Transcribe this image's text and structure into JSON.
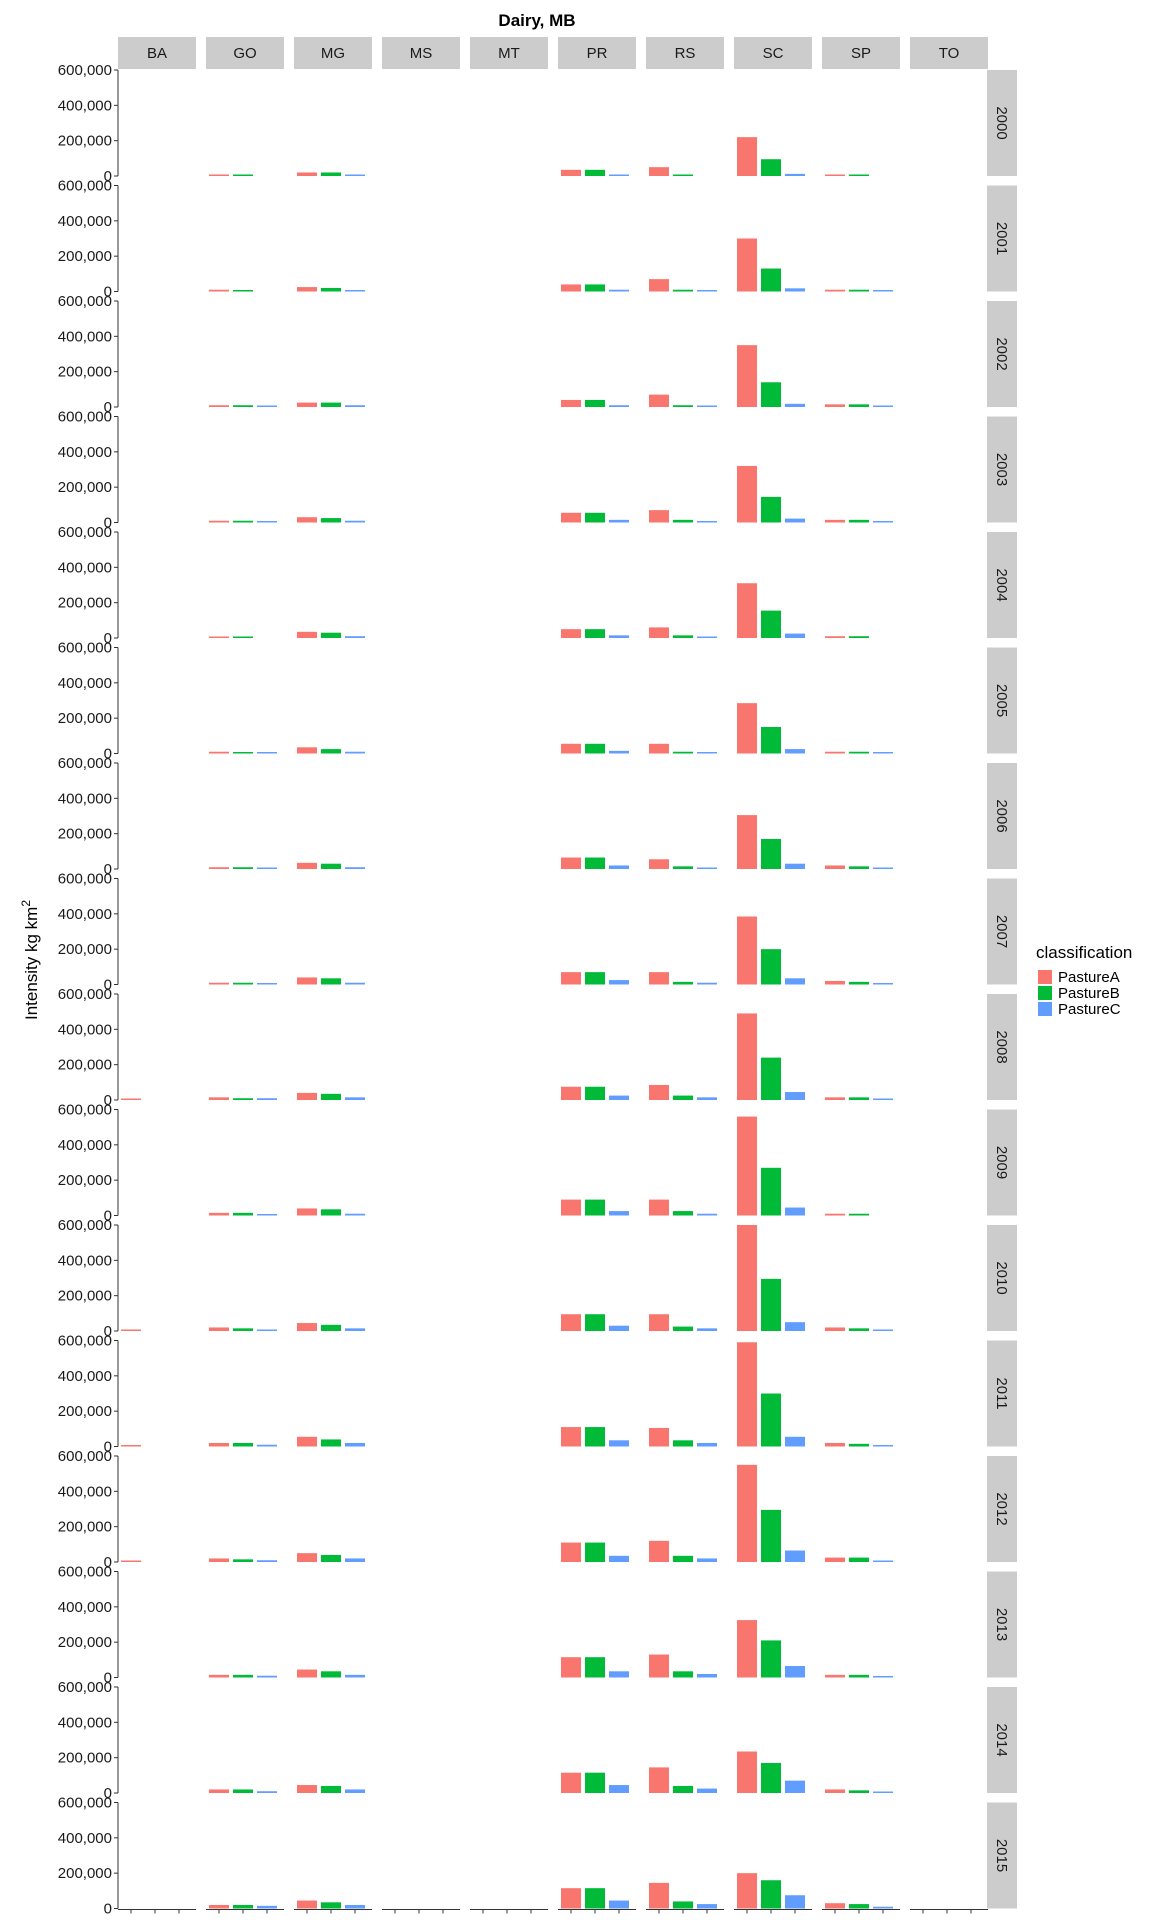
{
  "chart_data": {
    "type": "bar",
    "title": "Dairy, MB",
    "ylabel": "Intensity kg km",
    "ylabel_superscript": "2",
    "ylim": [
      0,
      600000
    ],
    "yticks": [
      0,
      200000,
      400000,
      600000
    ],
    "ytick_labels": [
      "0",
      "200,000",
      "400,000",
      "600,000"
    ],
    "column_facets": [
      "BA",
      "GO",
      "MG",
      "MS",
      "MT",
      "PR",
      "RS",
      "SC",
      "SP",
      "TO"
    ],
    "row_facets": [
      "2000",
      "2001",
      "2002",
      "2003",
      "2004",
      "2005",
      "2006",
      "2007",
      "2008",
      "2009",
      "2010",
      "2011",
      "2012",
      "2013",
      "2014",
      "2015"
    ],
    "categories": [
      "PastureA",
      "PastureB",
      "PastureC"
    ],
    "legend": {
      "title": "classification",
      "position": "right",
      "entries": [
        {
          "name": "PastureA",
          "color": "#F8766D"
        },
        {
          "name": "PastureB",
          "color": "#00BA38"
        },
        {
          "name": "PastureC",
          "color": "#619CFF"
        }
      ]
    },
    "values": {
      "2000": {
        "BA": [
          0,
          0,
          0
        ],
        "GO": [
          5000,
          5000,
          0
        ],
        "MG": [
          20000,
          20000,
          5000
        ],
        "MS": [
          0,
          0,
          0
        ],
        "MT": [
          0,
          0,
          0
        ],
        "PR": [
          35000,
          35000,
          5000
        ],
        "RS": [
          50000,
          5000,
          0
        ],
        "SC": [
          220000,
          95000,
          12000
        ],
        "SP": [
          8000,
          8000,
          0
        ],
        "TO": [
          0,
          0,
          0
        ]
      },
      "2001": {
        "BA": [
          0,
          0,
          0
        ],
        "GO": [
          10000,
          5000,
          0
        ],
        "MG": [
          25000,
          20000,
          5000
        ],
        "MS": [
          0,
          0,
          0
        ],
        "MT": [
          0,
          0,
          0
        ],
        "PR": [
          40000,
          40000,
          10000
        ],
        "RS": [
          70000,
          10000,
          5000
        ],
        "SC": [
          300000,
          130000,
          18000
        ],
        "SP": [
          10000,
          10000,
          5000
        ],
        "TO": [
          0,
          0,
          0
        ]
      },
      "2002": {
        "BA": [
          0,
          0,
          0
        ],
        "GO": [
          10000,
          10000,
          5000
        ],
        "MG": [
          25000,
          25000,
          10000
        ],
        "MS": [
          0,
          0,
          0
        ],
        "MT": [
          0,
          0,
          0
        ],
        "PR": [
          40000,
          40000,
          10000
        ],
        "RS": [
          70000,
          10000,
          5000
        ],
        "SC": [
          350000,
          140000,
          18000
        ],
        "SP": [
          15000,
          15000,
          5000
        ],
        "TO": [
          0,
          0,
          0
        ]
      },
      "2003": {
        "BA": [
          0,
          0,
          0
        ],
        "GO": [
          10000,
          10000,
          5000
        ],
        "MG": [
          30000,
          25000,
          10000
        ],
        "MS": [
          0,
          0,
          0
        ],
        "MT": [
          0,
          0,
          0
        ],
        "PR": [
          55000,
          55000,
          15000
        ],
        "RS": [
          70000,
          15000,
          5000
        ],
        "SC": [
          320000,
          145000,
          22000
        ],
        "SP": [
          15000,
          15000,
          5000
        ],
        "TO": [
          0,
          0,
          0
        ]
      },
      "2004": {
        "BA": [
          0,
          0,
          0
        ],
        "GO": [
          5000,
          5000,
          0
        ],
        "MG": [
          35000,
          30000,
          10000
        ],
        "MS": [
          0,
          0,
          0
        ],
        "MT": [
          0,
          0,
          0
        ],
        "PR": [
          50000,
          50000,
          15000
        ],
        "RS": [
          60000,
          15000,
          5000
        ],
        "SC": [
          310000,
          155000,
          25000
        ],
        "SP": [
          10000,
          10000,
          0
        ],
        "TO": [
          0,
          0,
          0
        ]
      },
      "2005": {
        "BA": [
          0,
          0,
          0
        ],
        "GO": [
          10000,
          5000,
          5000
        ],
        "MG": [
          35000,
          25000,
          10000
        ],
        "MS": [
          0,
          0,
          0
        ],
        "MT": [
          0,
          0,
          0
        ],
        "PR": [
          55000,
          55000,
          15000
        ],
        "RS": [
          55000,
          10000,
          5000
        ],
        "SC": [
          285000,
          150000,
          25000
        ],
        "SP": [
          10000,
          10000,
          5000
        ],
        "TO": [
          0,
          0,
          0
        ]
      },
      "2006": {
        "BA": [
          0,
          0,
          0
        ],
        "GO": [
          10000,
          10000,
          5000
        ],
        "MG": [
          35000,
          30000,
          10000
        ],
        "MS": [
          0,
          0,
          0
        ],
        "MT": [
          0,
          0,
          0
        ],
        "PR": [
          65000,
          65000,
          20000
        ],
        "RS": [
          55000,
          15000,
          5000
        ],
        "SC": [
          305000,
          170000,
          30000
        ],
        "SP": [
          20000,
          15000,
          5000
        ],
        "TO": [
          0,
          0,
          0
        ]
      },
      "2007": {
        "BA": [
          0,
          0,
          0
        ],
        "GO": [
          10000,
          10000,
          5000
        ],
        "MG": [
          40000,
          35000,
          10000
        ],
        "MS": [
          0,
          0,
          0
        ],
        "MT": [
          0,
          0,
          0
        ],
        "PR": [
          70000,
          70000,
          25000
        ],
        "RS": [
          70000,
          15000,
          10000
        ],
        "SC": [
          385000,
          200000,
          35000
        ],
        "SP": [
          20000,
          15000,
          5000
        ],
        "TO": [
          0,
          0,
          0
        ]
      },
      "2008": {
        "BA": [
          5000,
          0,
          0
        ],
        "GO": [
          15000,
          10000,
          10000
        ],
        "MG": [
          40000,
          35000,
          15000
        ],
        "MS": [
          0,
          0,
          0
        ],
        "MT": [
          0,
          0,
          0
        ],
        "PR": [
          75000,
          75000,
          25000
        ],
        "RS": [
          85000,
          25000,
          15000
        ],
        "SC": [
          490000,
          240000,
          45000
        ],
        "SP": [
          15000,
          15000,
          5000
        ],
        "TO": [
          0,
          0,
          0
        ]
      },
      "2009": {
        "BA": [
          0,
          0,
          0
        ],
        "GO": [
          15000,
          15000,
          5000
        ],
        "MG": [
          40000,
          35000,
          10000
        ],
        "MS": [
          0,
          0,
          0
        ],
        "MT": [
          0,
          0,
          0
        ],
        "PR": [
          90000,
          90000,
          25000
        ],
        "RS": [
          90000,
          25000,
          10000
        ],
        "SC": [
          560000,
          270000,
          45000
        ],
        "SP": [
          10000,
          10000,
          0
        ],
        "TO": [
          0,
          0,
          0
        ]
      },
      "2010": {
        "BA": [
          5000,
          0,
          0
        ],
        "GO": [
          20000,
          15000,
          5000
        ],
        "MG": [
          45000,
          35000,
          15000
        ],
        "MS": [
          0,
          0,
          0
        ],
        "MT": [
          0,
          0,
          0
        ],
        "PR": [
          95000,
          95000,
          30000
        ],
        "RS": [
          95000,
          25000,
          15000
        ],
        "SC": [
          600000,
          295000,
          50000
        ],
        "SP": [
          20000,
          15000,
          5000
        ],
        "TO": [
          0,
          0,
          0
        ]
      },
      "2011": {
        "BA": [
          5000,
          0,
          0
        ],
        "GO": [
          20000,
          20000,
          10000
        ],
        "MG": [
          55000,
          40000,
          20000
        ],
        "MS": [
          0,
          0,
          0
        ],
        "MT": [
          0,
          0,
          0
        ],
        "PR": [
          110000,
          110000,
          35000
        ],
        "RS": [
          105000,
          35000,
          20000
        ],
        "SC": [
          590000,
          300000,
          55000
        ],
        "SP": [
          20000,
          15000,
          5000
        ],
        "TO": [
          0,
          0,
          0
        ]
      },
      "2012": {
        "BA": [
          5000,
          0,
          0
        ],
        "GO": [
          20000,
          15000,
          10000
        ],
        "MG": [
          50000,
          40000,
          20000
        ],
        "MS": [
          0,
          0,
          0
        ],
        "MT": [
          0,
          0,
          0
        ],
        "PR": [
          110000,
          110000,
          35000
        ],
        "RS": [
          120000,
          35000,
          20000
        ],
        "SC": [
          550000,
          295000,
          65000
        ],
        "SP": [
          25000,
          25000,
          5000
        ],
        "TO": [
          0,
          0,
          0
        ]
      },
      "2013": {
        "BA": [
          0,
          0,
          0
        ],
        "GO": [
          15000,
          15000,
          10000
        ],
        "MG": [
          45000,
          35000,
          15000
        ],
        "MS": [
          0,
          0,
          0
        ],
        "MT": [
          0,
          0,
          0
        ],
        "PR": [
          115000,
          115000,
          35000
        ],
        "RS": [
          130000,
          35000,
          20000
        ],
        "SC": [
          325000,
          210000,
          65000
        ],
        "SP": [
          15000,
          15000,
          5000
        ],
        "TO": [
          0,
          0,
          0
        ]
      },
      "2014": {
        "BA": [
          0,
          0,
          0
        ],
        "GO": [
          20000,
          20000,
          10000
        ],
        "MG": [
          45000,
          40000,
          20000
        ],
        "MS": [
          0,
          0,
          0
        ],
        "MT": [
          0,
          0,
          0
        ],
        "PR": [
          115000,
          115000,
          45000
        ],
        "RS": [
          145000,
          40000,
          25000
        ],
        "SC": [
          235000,
          170000,
          70000
        ],
        "SP": [
          20000,
          15000,
          5000
        ],
        "TO": [
          0,
          0,
          0
        ]
      },
      "2015": {
        "BA": [
          0,
          0,
          0
        ],
        "GO": [
          20000,
          20000,
          15000
        ],
        "MG": [
          45000,
          35000,
          20000
        ],
        "MS": [
          0,
          0,
          0
        ],
        "MT": [
          0,
          0,
          0
        ],
        "PR": [
          115000,
          115000,
          45000
        ],
        "RS": [
          145000,
          40000,
          25000
        ],
        "SC": [
          200000,
          160000,
          75000
        ],
        "SP": [
          30000,
          25000,
          10000
        ],
        "TO": [
          0,
          0,
          0
        ]
      }
    }
  }
}
